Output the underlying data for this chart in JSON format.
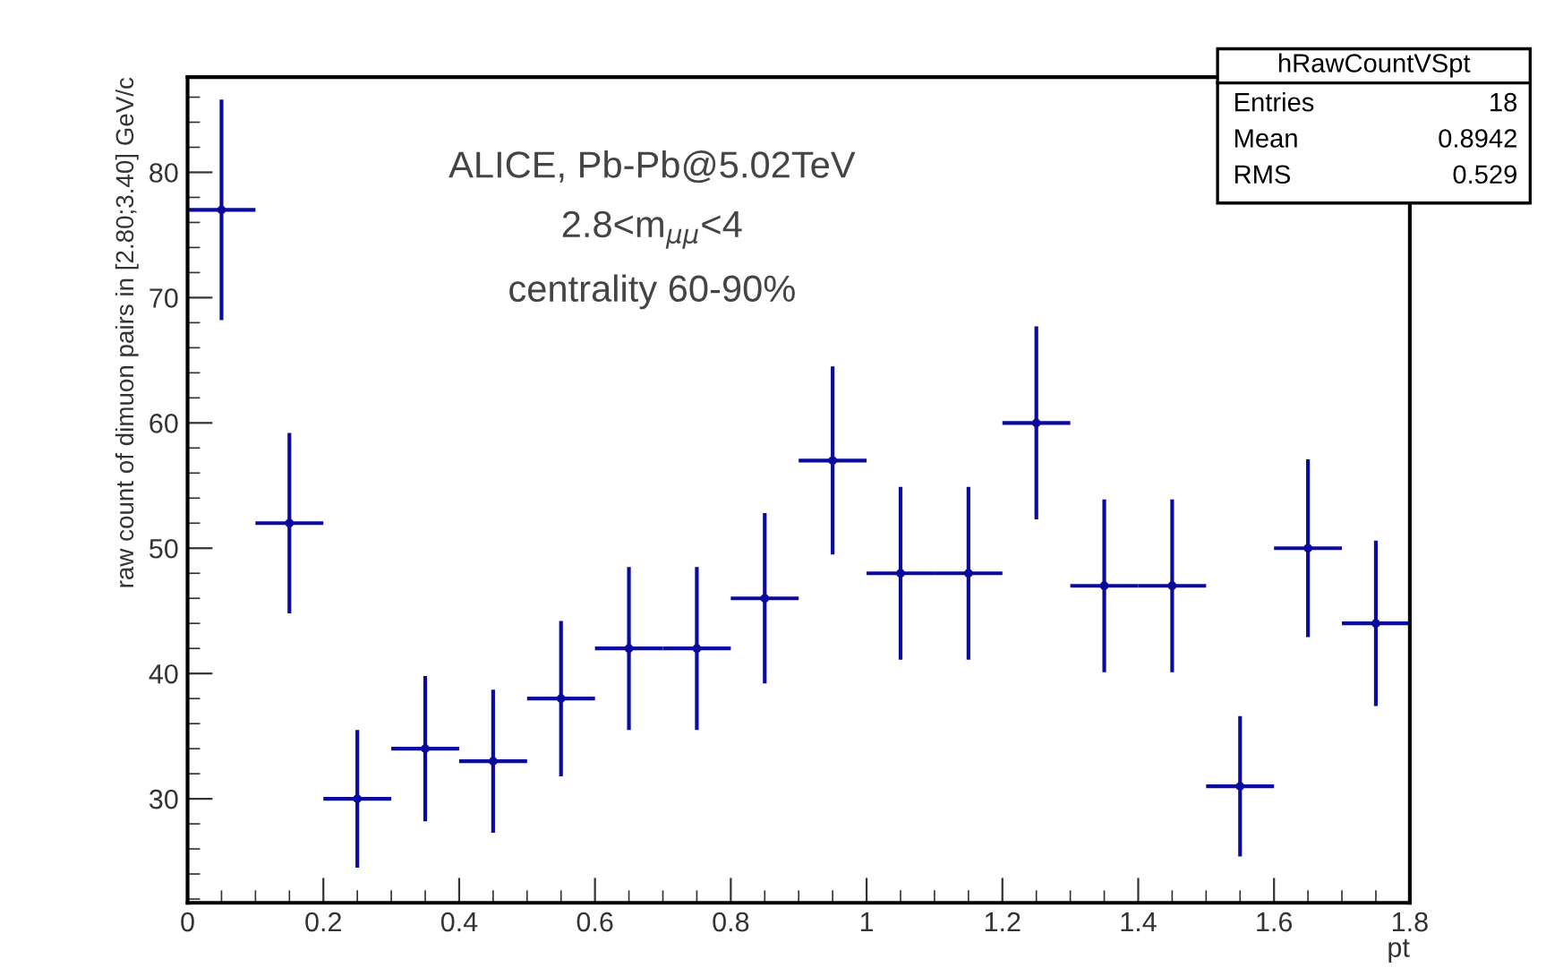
{
  "chart_data": {
    "type": "scatter",
    "xlabel": "pt",
    "ylabel": "raw count of dimuon pairs in [2.80;3.40] GeV/c",
    "x": [
      0.05,
      0.15,
      0.25,
      0.35,
      0.45,
      0.55,
      0.65,
      0.75,
      0.85,
      0.95,
      1.05,
      1.15,
      1.25,
      1.35,
      1.45,
      1.55,
      1.65,
      1.75
    ],
    "series": [
      {
        "color": "#0a0a9e",
        "values": [
          77,
          52,
          30,
          34,
          33,
          38,
          42,
          42,
          46,
          57,
          48,
          48,
          60,
          47,
          47,
          31,
          50,
          44
        ],
        "errors": [
          8.8,
          7.2,
          5.5,
          5.8,
          5.7,
          6.2,
          6.5,
          6.5,
          6.8,
          7.5,
          6.9,
          6.9,
          7.7,
          6.9,
          6.9,
          5.6,
          7.1,
          6.6
        ],
        "xerrors": [
          0.05,
          0.05,
          0.05,
          0.05,
          0.05,
          0.05,
          0.05,
          0.05,
          0.05,
          0.05,
          0.05,
          0.05,
          0.05,
          0.05,
          0.05,
          0.05,
          0.05,
          0.05
        ]
      }
    ],
    "marker": "circle",
    "xlim": [
      0,
      1.8
    ],
    "xticks": [
      0,
      0.2,
      0.4,
      0.6,
      0.8,
      1,
      1.2,
      1.4,
      1.6,
      1.8
    ],
    "ylim": [
      21.7,
      87.6
    ],
    "yticks": [
      30,
      40,
      50,
      60,
      70,
      80
    ],
    "grid": false,
    "legend": false,
    "annotations": [
      "ALICE, Pb-Pb@5.02TeV",
      "2.8<m$_{μμ}$<4",
      "centrality 60-90%",
      "hRawCountVSpt",
      "Entries",
      "18",
      "Mean",
      "0.8942",
      "RMS",
      "0.529"
    ]
  }
}
